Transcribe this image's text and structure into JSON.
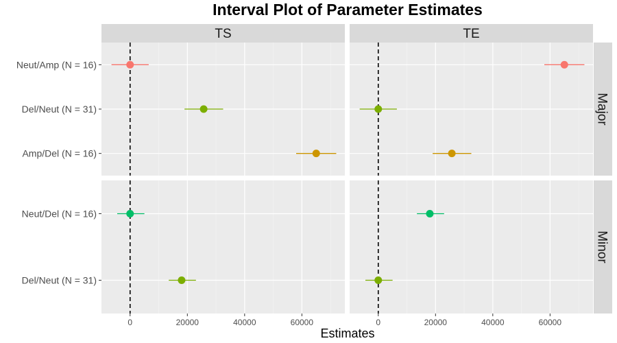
{
  "chart_data": {
    "type": "scatter",
    "title": "Interval Plot of Parameter Estimates",
    "xlabel": "Estimates",
    "ylabel": "",
    "x_ticks": [
      0,
      20000,
      40000,
      60000
    ],
    "xlim": [
      -10000,
      75000
    ],
    "columns": [
      "TS",
      "TE"
    ],
    "rows": [
      {
        "name": "Major",
        "categories": [
          "Neut/Amp (N = 16)",
          "Del/Neut (N = 31)",
          "Amp/Del (N = 16)"
        ]
      },
      {
        "name": "Minor",
        "categories": [
          "Neut/Del (N = 16)",
          "Del/Neut (N = 31)"
        ]
      }
    ],
    "reference_line_x": 0,
    "grid": true,
    "colors": {
      "Neut/Amp": "#F8766D",
      "Del/Neut": "#7CAE00",
      "Amp/Del": "#CD9600",
      "Neut/Del": "#00BE67"
    },
    "points": [
      {
        "row": "Major",
        "column": "TS",
        "category": "Neut/Amp (N = 16)",
        "group": "Neut/Amp",
        "estimate": 0,
        "lower": -6500,
        "upper": 6500
      },
      {
        "row": "Major",
        "column": "TS",
        "category": "Del/Neut (N = 31)",
        "group": "Del/Neut",
        "estimate": 25700,
        "lower": 19000,
        "upper": 32500
      },
      {
        "row": "Major",
        "column": "TS",
        "category": "Amp/Del (N = 16)",
        "group": "Amp/Del",
        "estimate": 65000,
        "lower": 58000,
        "upper": 72000
      },
      {
        "row": "Major",
        "column": "TE",
        "category": "Neut/Amp (N = 16)",
        "group": "Neut/Amp",
        "estimate": 65000,
        "lower": 58000,
        "upper": 72000
      },
      {
        "row": "Major",
        "column": "TE",
        "category": "Del/Neut (N = 31)",
        "group": "Del/Neut",
        "estimate": 0,
        "lower": -6500,
        "upper": 6500
      },
      {
        "row": "Major",
        "column": "TE",
        "category": "Amp/Del (N = 16)",
        "group": "Amp/Del",
        "estimate": 25700,
        "lower": 19000,
        "upper": 32500
      },
      {
        "row": "Minor",
        "column": "TS",
        "category": "Neut/Del (N = 16)",
        "group": "Neut/Del",
        "estimate": 0,
        "lower": -4500,
        "upper": 5000
      },
      {
        "row": "Minor",
        "column": "TS",
        "category": "Del/Neut (N = 31)",
        "group": "Del/Neut",
        "estimate": 18000,
        "lower": 13500,
        "upper": 23000
      },
      {
        "row": "Minor",
        "column": "TE",
        "category": "Neut/Del (N = 16)",
        "group": "Neut/Del",
        "estimate": 18000,
        "lower": 13500,
        "upper": 23000
      },
      {
        "row": "Minor",
        "column": "TE",
        "category": "Del/Neut (N = 31)",
        "group": "Del/Neut",
        "estimate": 0,
        "lower": -4500,
        "upper": 5000
      }
    ]
  }
}
